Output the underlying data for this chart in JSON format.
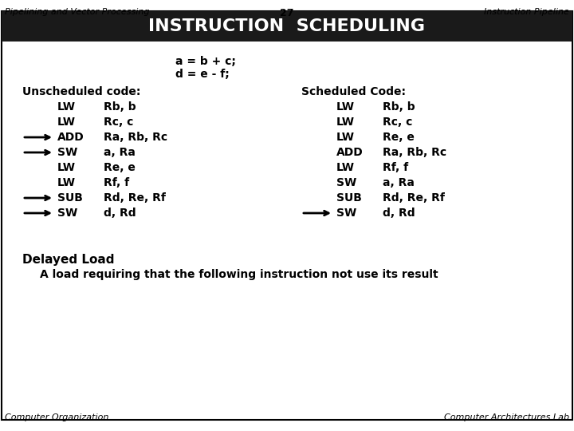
{
  "header_left": "Pipelining and Vector Processing",
  "header_center": "27",
  "header_right": "Instruction Pipeline",
  "title": "INSTRUCTION  SCHEDULING",
  "subtitle1": "a = b + c;",
  "subtitle2": "d = e - f;",
  "footer_left": "Computer Organization",
  "footer_right": "Computer Architectures Lab",
  "unscheduled_header": "Unscheduled code:",
  "scheduled_header": "Scheduled Code:",
  "unscheduled": [
    {
      "arrow": false,
      "op": "LW",
      "args": "Rb, b"
    },
    {
      "arrow": false,
      "op": "LW",
      "args": "Rc, c"
    },
    {
      "arrow": true,
      "op": "ADD",
      "args": "Ra, Rb, Rc"
    },
    {
      "arrow": true,
      "op": "SW",
      "args": "a, Ra"
    },
    {
      "arrow": false,
      "op": "LW",
      "args": "Re, e"
    },
    {
      "arrow": false,
      "op": "LW",
      "args": "Rf, f"
    },
    {
      "arrow": true,
      "op": "SUB",
      "args": "Rd, Re, Rf"
    },
    {
      "arrow": true,
      "op": "SW",
      "args": "d, Rd"
    }
  ],
  "scheduled": [
    {
      "arrow": false,
      "op": "LW",
      "args": "Rb, b"
    },
    {
      "arrow": false,
      "op": "LW",
      "args": "Rc, c"
    },
    {
      "arrow": false,
      "op": "LW",
      "args": "Re, e"
    },
    {
      "arrow": false,
      "op": "ADD",
      "args": "Ra, Rb, Rc"
    },
    {
      "arrow": false,
      "op": "LW",
      "args": "Rf, f"
    },
    {
      "arrow": false,
      "op": "SW",
      "args": "a, Ra"
    },
    {
      "arrow": false,
      "op": "SUB",
      "args": "Rd, Re, Rf"
    },
    {
      "arrow": true,
      "op": "SW",
      "args": "d, Rd"
    }
  ],
  "delayed_load_label": "Delayed Load",
  "delayed_load_desc": "A load requiring that the following instruction not use its result",
  "bg_color": "#ffffff",
  "text_color": "#000000",
  "border_color": "#000000"
}
